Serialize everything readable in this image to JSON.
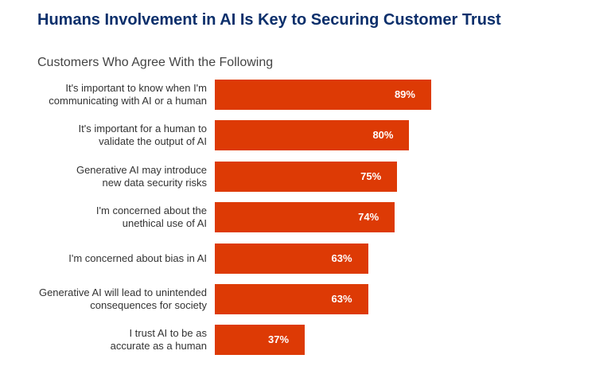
{
  "chart_data": {
    "type": "bar",
    "orientation": "horizontal",
    "title": "Humans Involvement in AI Is Key to Securing Customer Trust",
    "subtitle": "Customers Who Agree With the Following",
    "categories": [
      "It's important to know when I'm\ncommunicating with AI or a human",
      "It's important for a human to\nvalidate the output of AI",
      "Generative AI may introduce\nnew data security risks",
      "I'm concerned about the\nunethical use of AI",
      "I'm concerned about bias in AI",
      "Generative AI will lead to unintended\nconsequences for society",
      "I trust AI to be as\naccurate as a human"
    ],
    "values": [
      89,
      80,
      75,
      74,
      63,
      63,
      37
    ],
    "value_labels": [
      "89%",
      "80%",
      "75%",
      "74%",
      "63%",
      "63%",
      "37%"
    ],
    "color": "#dd3a05"
  }
}
